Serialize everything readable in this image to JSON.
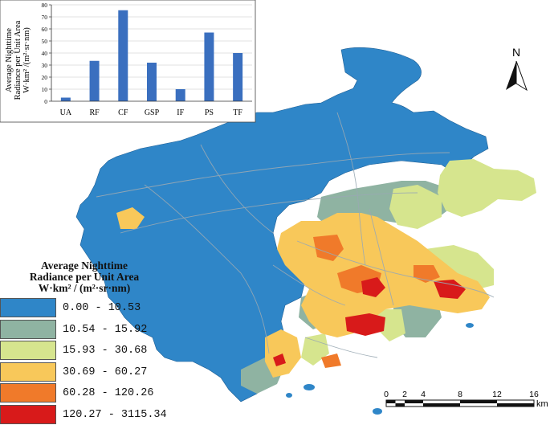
{
  "inset_chart": {
    "chart_data": {
      "type": "bar",
      "ylabel": [
        "Average Nighttime",
        "Radiance per Unit Area",
        "W·km² /(m²·sr·nm)"
      ],
      "categories": [
        "UA",
        "RF",
        "CF",
        "GSP",
        "IF",
        "PS",
        "TF"
      ],
      "values": [
        3,
        33.5,
        75.5,
        32,
        10,
        57,
        40
      ],
      "ylim": [
        0,
        80
      ],
      "yticks": [
        "0",
        "10",
        "20",
        "30",
        "40",
        "50",
        "60",
        "70",
        "80"
      ],
      "grid": true,
      "bar_color": "#3a6fbf"
    }
  },
  "legend": {
    "title": [
      "Average Nighttime",
      "Radiance per Unit Area",
      "W·km² / (m²·sr·nm)"
    ],
    "classes": [
      {
        "label": "0.00  -  10.53",
        "color": "#2f86c8"
      },
      {
        "label": "10.54  -  15.92",
        "color": "#8fb3a2"
      },
      {
        "label": "15.93  -  30.68",
        "color": "#d6e58e"
      },
      {
        "label": "30.69  -  60.27",
        "color": "#f8c85a"
      },
      {
        "label": "60.28  -  120.26",
        "color": "#f07a2a"
      },
      {
        "label": "120.27  -  3115.34",
        "color": "#d81a1a"
      }
    ]
  },
  "north_arrow": {
    "label": "N"
  },
  "scale_bar": {
    "ticks": [
      "0",
      "2",
      "4",
      "8",
      "12",
      "16"
    ],
    "unit": "km"
  }
}
